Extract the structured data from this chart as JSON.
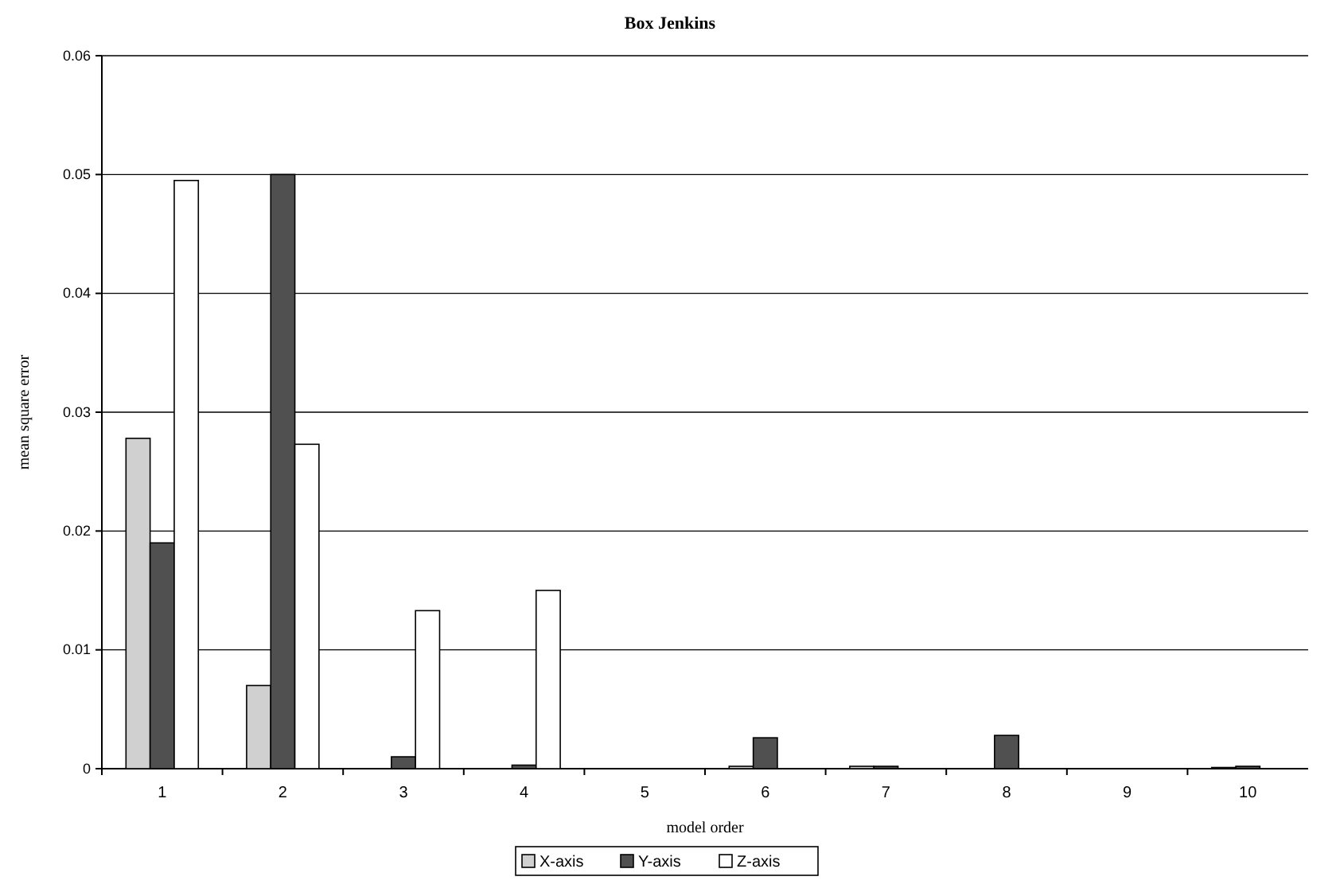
{
  "chart_data": {
    "type": "bar",
    "title": "Box Jenkins",
    "xlabel": "model order",
    "ylabel": "mean square error",
    "categories": [
      "1",
      "2",
      "3",
      "4",
      "5",
      "6",
      "7",
      "8",
      "9",
      "10"
    ],
    "series": [
      {
        "name": "X-axis",
        "color": "#d0d0d0",
        "values": [
          0.0278,
          0.007,
          0,
          0,
          0,
          0.0002,
          0.0002,
          0,
          0,
          0.0001
        ]
      },
      {
        "name": "Y-axis",
        "color": "#505050",
        "values": [
          0.019,
          0.05,
          0.001,
          0.0003,
          0,
          0.0026,
          0.0002,
          0.0028,
          0,
          0.0002
        ]
      },
      {
        "name": "Z-axis",
        "color": "#ffffff",
        "values": [
          0.0495,
          0.0273,
          0.0133,
          0.015,
          0,
          0,
          0,
          0,
          0,
          0
        ]
      }
    ],
    "ylim": [
      0,
      0.06
    ],
    "yticks": [
      {
        "value": 0,
        "label": "0"
      },
      {
        "value": 0.01,
        "label": "0.01"
      },
      {
        "value": 0.02,
        "label": "0.02"
      },
      {
        "value": 0.03,
        "label": "0.03"
      },
      {
        "value": 0.04,
        "label": "0.04"
      },
      {
        "value": 0.05,
        "label": "0.05"
      },
      {
        "value": 0.06,
        "label": "0.06"
      }
    ],
    "grid": "y",
    "legend": "bottom"
  }
}
